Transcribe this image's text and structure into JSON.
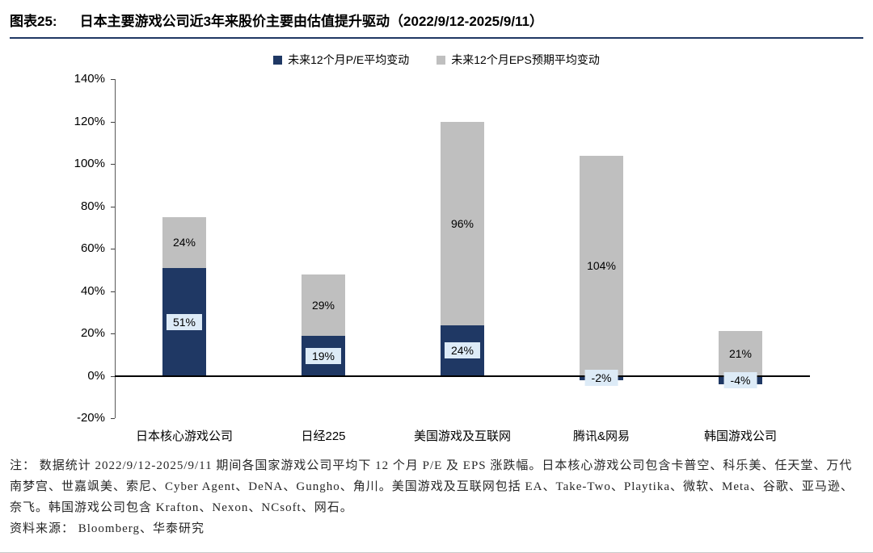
{
  "header": {
    "label": "图表25:",
    "title": "日本主要游戏公司近3年来股价主要由估值提升驱动（2022/9/12-2025/9/11）"
  },
  "chart_data": {
    "type": "bar",
    "stacked": true,
    "title": "日本主要游戏公司近3年来股价主要由估值提升驱动（2022/9/12-2025/9/11）",
    "categories": [
      "日本核心游戏公司",
      "日经225",
      "美国游戏及互联网",
      "腾讯&网易",
      "韩国游戏公司"
    ],
    "series": [
      {
        "name": "未来12个月P/E平均变动",
        "color": "#1F3864",
        "values": [
          51,
          19,
          24,
          -2,
          -4
        ]
      },
      {
        "name": "未来12个月EPS预期平均变动",
        "color": "#BFBFBF",
        "values": [
          24,
          29,
          96,
          104,
          21
        ]
      }
    ],
    "ylim": [
      -20,
      140
    ],
    "ytick_step": 20,
    "tick_suffix": "%",
    "legend_position": "top",
    "grid": false,
    "label_bg": "#DDEBF7"
  },
  "footnote": {
    "note": "注： 数据统计 2022/9/12-2025/9/11 期间各国家游戏公司平均下 12 个月 P/E 及 EPS 涨跌幅。日本核心游戏公司包含卡普空、科乐美、任天堂、万代南梦宫、世嘉飒美、索尼、Cyber Agent、DeNA、Gungho、角川。美国游戏及互联网包括 EA、Take-Two、Playtika、微软、Meta、谷歌、亚马逊、奈飞。韩国游戏公司包含 Krafton、Nexon、NCsoft、网石。",
    "source": "资料来源： Bloomberg、华泰研究"
  }
}
